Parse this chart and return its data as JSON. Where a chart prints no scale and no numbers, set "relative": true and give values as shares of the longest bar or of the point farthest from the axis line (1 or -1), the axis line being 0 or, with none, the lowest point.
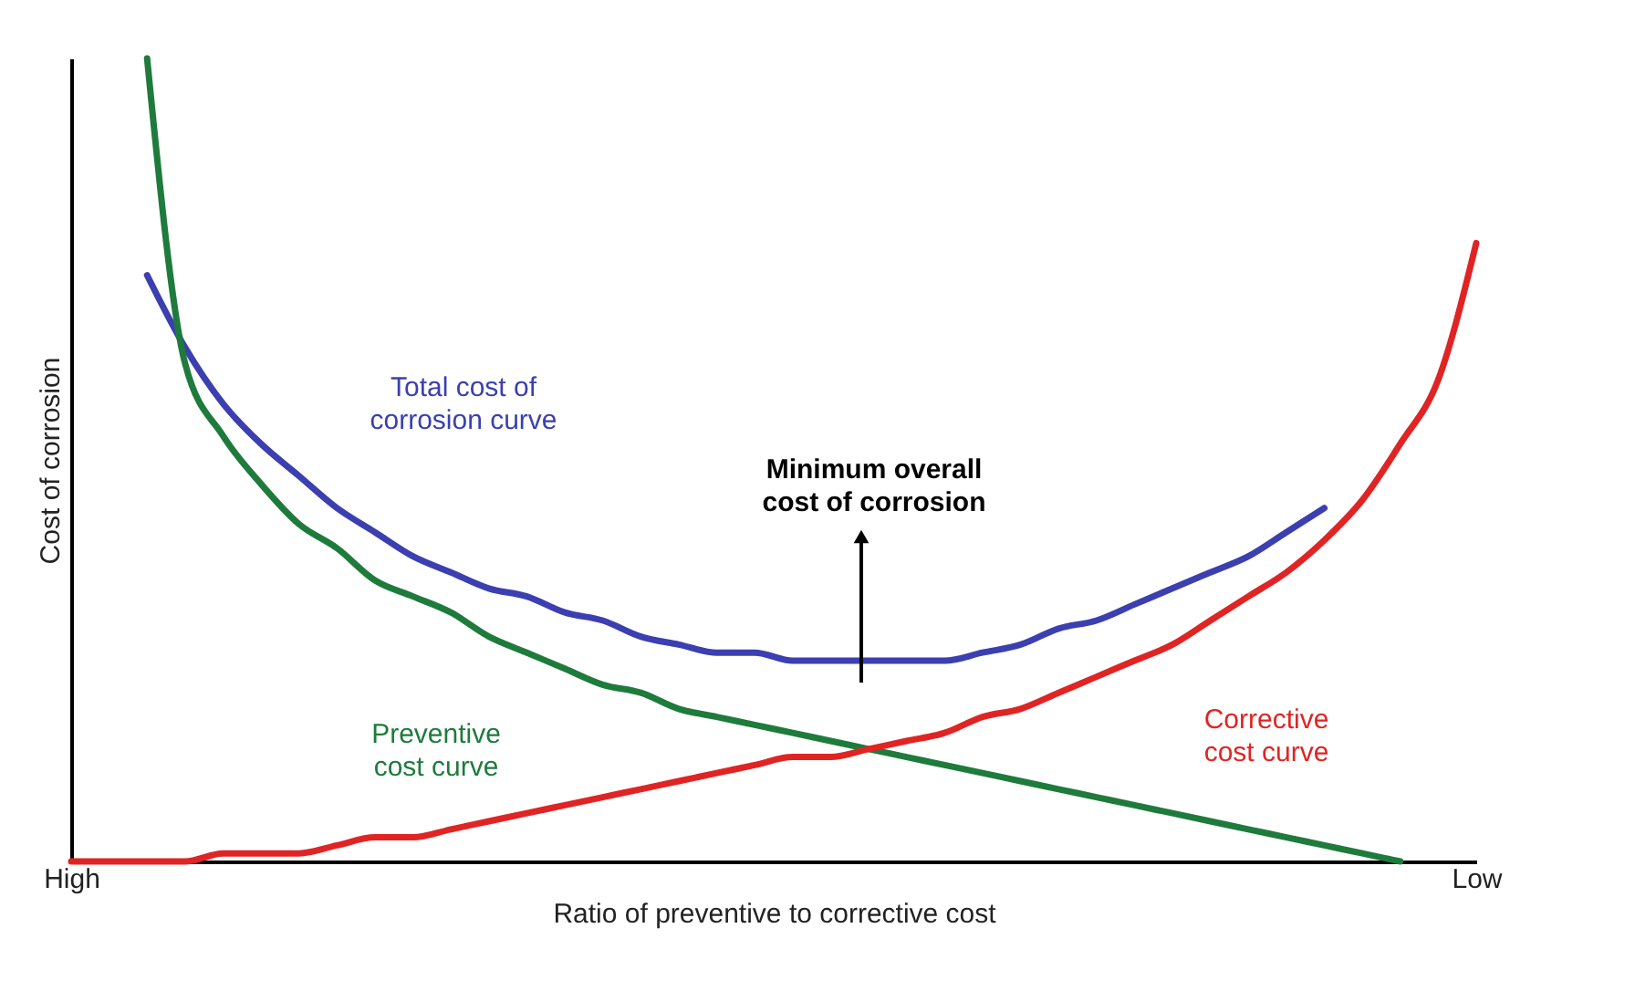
{
  "chart_data": {
    "type": "line",
    "relative": true,
    "xlabel": "Ratio of preventive to corrective cost",
    "ylabel": "Cost of  corrosion",
    "categories": [
      "High",
      null,
      null,
      null,
      null,
      null,
      null,
      null,
      null,
      null,
      null,
      null,
      null,
      null,
      null,
      null,
      null,
      null,
      null,
      null,
      null,
      null,
      null,
      null,
      null,
      null,
      null,
      null,
      null,
      null,
      null,
      null,
      null,
      null,
      null,
      null,
      null,
      "Low"
    ],
    "series": [
      {
        "name": "Total cost of\ncorrosion curve",
        "color": "#3b3fb0",
        "values": [
          null,
          null,
          0.73,
          0.64,
          0.57,
          0.52,
          0.48,
          0.44,
          0.41,
          0.38,
          0.36,
          0.34,
          0.33,
          0.31,
          0.3,
          0.28,
          0.27,
          0.26,
          0.26,
          0.25,
          0.25,
          0.25,
          0.25,
          0.25,
          0.26,
          0.27,
          0.29,
          0.3,
          0.32,
          0.34,
          0.36,
          0.38,
          0.41,
          0.44,
          null,
          null,
          null,
          null
        ]
      },
      {
        "name": "Preventive\ncost curve",
        "color": "#1e7b3c",
        "values": [
          null,
          null,
          1.0,
          0.62,
          0.53,
          0.47,
          0.42,
          0.39,
          0.35,
          0.33,
          0.31,
          0.28,
          0.26,
          0.24,
          0.22,
          0.21,
          0.19,
          0.18,
          0.17,
          0.16,
          0.15,
          0.14,
          0.13,
          0.12,
          0.11,
          0.1,
          0.09,
          0.08,
          0.07,
          0.06,
          0.05,
          0.04,
          0.03,
          0.02,
          0.01,
          0,
          null,
          null
        ]
      },
      {
        "name": "Corrective\ncost curve",
        "color": "#e02424",
        "values": [
          0,
          0,
          0,
          0,
          0.01,
          0.01,
          0.01,
          0.02,
          0.03,
          0.03,
          0.04,
          0.05,
          0.06,
          0.07,
          0.08,
          0.09,
          0.1,
          0.11,
          0.12,
          0.13,
          0.13,
          0.14,
          0.15,
          0.16,
          0.18,
          0.19,
          0.21,
          0.23,
          0.25,
          0.27,
          0.3,
          0.33,
          0.36,
          0.4,
          0.45,
          0.52,
          0.6,
          0.77
        ]
      }
    ],
    "annotations": [
      "Minimum overall\ncost of corrosion"
    ],
    "line_style": "solid",
    "grid": false
  }
}
